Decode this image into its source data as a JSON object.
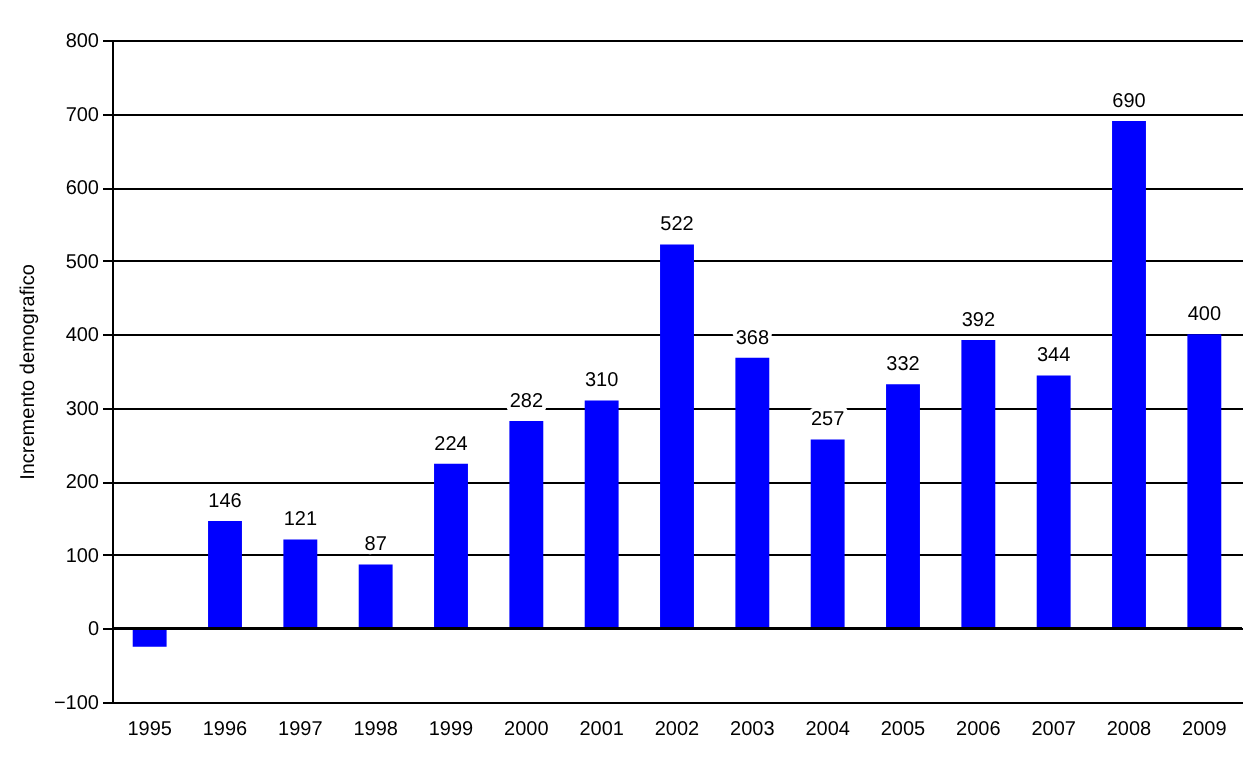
{
  "chart_data": {
    "type": "bar",
    "ylabel": "Incremento demografico",
    "categories": [
      "1995",
      "1996",
      "1997",
      "1998",
      "1999",
      "2000",
      "2001",
      "2002",
      "2003",
      "2004",
      "2005",
      "2006",
      "2007",
      "2008",
      "2009"
    ],
    "values": [
      -25,
      146,
      121,
      87,
      224,
      282,
      310,
      522,
      368,
      257,
      332,
      392,
      344,
      690,
      400
    ],
    "value_labels": [
      null,
      "146",
      "121",
      "87",
      "224",
      "282",
      "310",
      "522",
      "368",
      "257",
      "332",
      "392",
      "344",
      "690",
      "400"
    ],
    "color": "#0000ff",
    "ylim": [
      -100,
      800
    ],
    "yticks": [
      -100,
      0,
      100,
      200,
      300,
      400,
      500,
      600,
      700,
      800
    ],
    "grid": "y",
    "legend": false
  }
}
